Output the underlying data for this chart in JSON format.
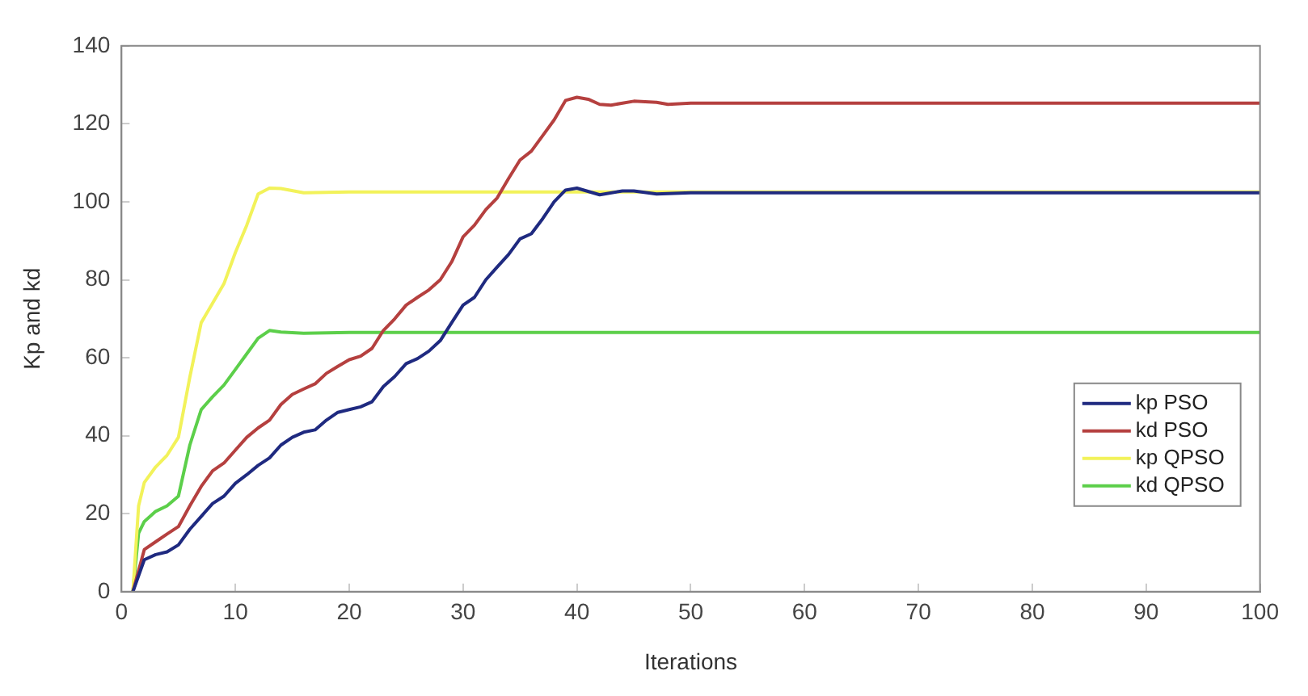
{
  "chart_data": {
    "type": "line",
    "xlabel": "Iterations",
    "ylabel": "Kp and kd",
    "xlim": [
      0,
      100
    ],
    "xticks": [
      0,
      10,
      20,
      30,
      40,
      50,
      60,
      70,
      80,
      90,
      100
    ],
    "ylim": [
      0,
      140
    ],
    "yticks": [
      0,
      20,
      40,
      60,
      80,
      100,
      120,
      140
    ],
    "grid": false,
    "legend": "right",
    "marker": "none",
    "line_style": "solid",
    "series": [
      {
        "name": "kp PSO",
        "color": "#1f2a80",
        "x": [
          1,
          2,
          3,
          4,
          5,
          6,
          7,
          8,
          9,
          10,
          11,
          12,
          13,
          14,
          15,
          16,
          17,
          18,
          19,
          20,
          21,
          22,
          23,
          24,
          25,
          26,
          27,
          28,
          29,
          30,
          31,
          32,
          33,
          34,
          35,
          36,
          37,
          38,
          39,
          40,
          42,
          44,
          45,
          47,
          50,
          100
        ],
        "values": [
          0,
          8.2,
          9.5,
          10.2,
          12,
          16,
          19.3,
          22.6,
          24.5,
          27.8,
          30,
          32.4,
          34.3,
          37.6,
          39.6,
          40.9,
          41.5,
          44,
          46,
          46.7,
          47.4,
          48.7,
          52.6,
          55.2,
          58.5,
          59.8,
          61.7,
          64.4,
          69,
          73.5,
          75.5,
          80,
          83.3,
          86.5,
          90.5,
          91.8,
          95.7,
          100,
          103,
          103.5,
          101.8,
          102.8,
          102.8,
          102,
          102.3,
          102.3
        ]
      },
      {
        "name": "kd PSO",
        "color": "#b5403f",
        "x": [
          1,
          2,
          3,
          4,
          5,
          6,
          7,
          8,
          9,
          10,
          11,
          12,
          13,
          14,
          15,
          16,
          17,
          18,
          19,
          20,
          21,
          22,
          23,
          24,
          25,
          26,
          27,
          28,
          29,
          30,
          31,
          32,
          33,
          34,
          35,
          36,
          37,
          38,
          39,
          40,
          41,
          42,
          43,
          45,
          47,
          48,
          50,
          100
        ],
        "values": [
          0,
          10.8,
          12.8,
          14.8,
          16.7,
          22,
          27,
          31,
          33,
          36.3,
          39.6,
          42,
          44,
          48,
          50.6,
          52,
          53.3,
          56,
          57.8,
          59.5,
          60.4,
          62.4,
          67,
          70,
          73.5,
          75.5,
          77.4,
          80,
          84.6,
          91,
          94,
          98,
          101,
          106,
          110.7,
          113,
          117,
          121,
          126,
          126.8,
          126.3,
          125,
          124.8,
          125.8,
          125.5,
          125,
          125.3,
          125.3
        ]
      },
      {
        "name": "kp QPSO",
        "color": "#f2f25a",
        "x": [
          1,
          1.5,
          2,
          3,
          4,
          5,
          6,
          7,
          8,
          9,
          10,
          11,
          12,
          13,
          14,
          16,
          20,
          100
        ],
        "values": [
          0,
          22,
          28,
          32,
          35,
          39.6,
          55,
          69,
          74,
          79,
          87,
          94,
          102,
          103.5,
          103.4,
          102.3,
          102.5,
          102.5
        ]
      },
      {
        "name": "kd QPSO",
        "color": "#5ccf4a",
        "x": [
          1,
          1.5,
          2,
          3,
          4,
          5,
          6,
          7,
          8,
          9,
          10,
          11,
          12,
          13,
          14,
          16,
          20,
          100
        ],
        "values": [
          0,
          15,
          18,
          20.6,
          22,
          24.5,
          37.6,
          46.7,
          50,
          53,
          57,
          61,
          65,
          67,
          66.6,
          66.3,
          66.5,
          66.5
        ]
      }
    ]
  }
}
